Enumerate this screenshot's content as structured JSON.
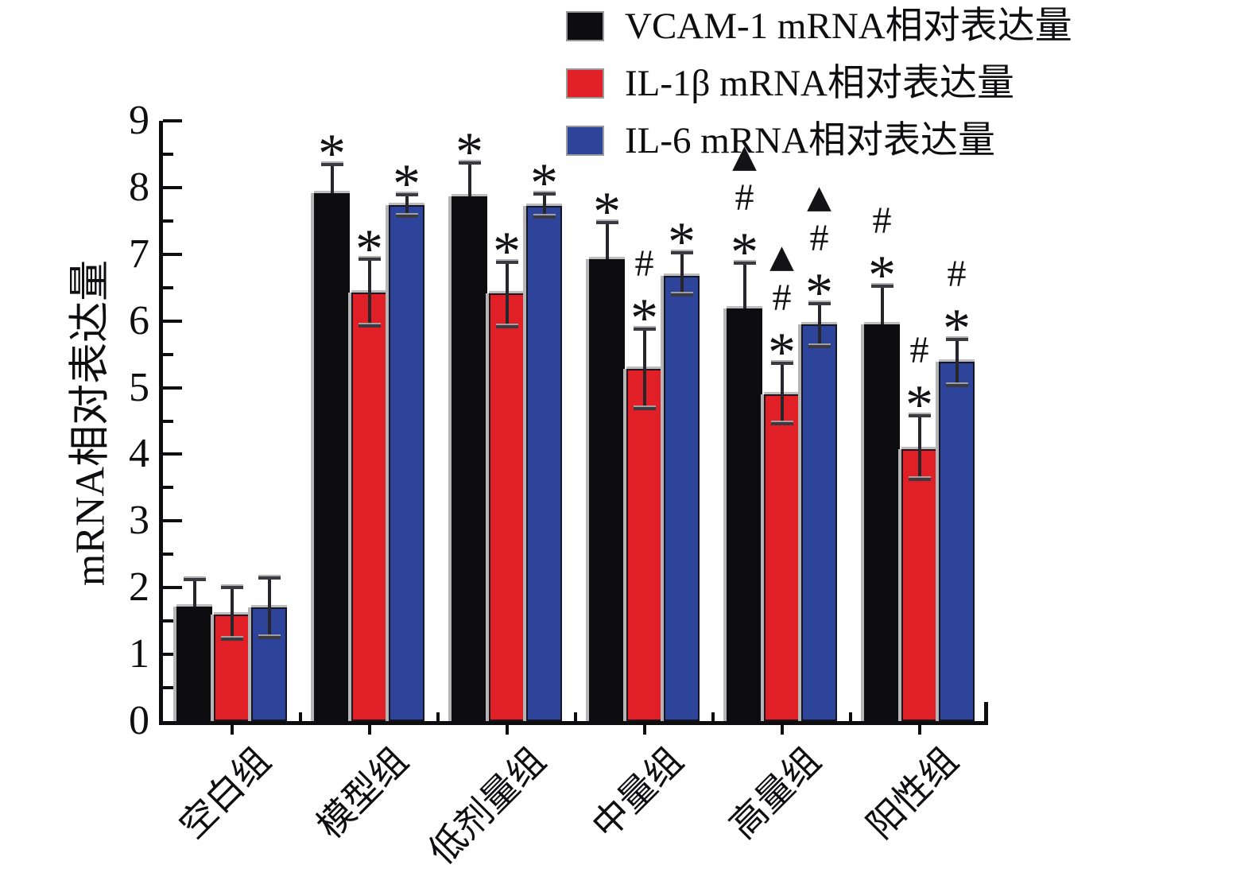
{
  "figure": {
    "background": "#ffffff",
    "axis_color": "#0e0e10"
  },
  "chart_data": {
    "type": "bar",
    "title": "",
    "xlabel": "",
    "ylabel": "mRNA相对表达量",
    "ylim": [
      0,
      9
    ],
    "ytick_step": 1,
    "yminor_step": 0.5,
    "grid": false,
    "legend_position": "top-right",
    "error_bars": true,
    "categories": [
      "空白组",
      "模型组",
      "低剂量组",
      "中量组",
      "高量组",
      "阳性组"
    ],
    "series": [
      {
        "name": "VCAM-1 mRNA相对表达量",
        "color": "#0d0d10",
        "values": [
          1.72,
          7.92,
          7.87,
          6.93,
          6.19,
          5.95
        ],
        "err_up": [
          0.4,
          0.43,
          0.5,
          0.55,
          0.68,
          0.57
        ],
        "err_down": [
          null,
          null,
          null,
          null,
          null,
          null
        ],
        "marks": [
          [],
          [
            "*"
          ],
          [
            "*"
          ],
          [
            "*"
          ],
          [
            "▲",
            "#",
            "*"
          ],
          [
            "#",
            "*"
          ]
        ]
      },
      {
        "name": "IL-1β mRNA相对表达量",
        "color": "#e01f26",
        "values": [
          1.6,
          6.42,
          6.41,
          5.28,
          4.9,
          4.08
        ],
        "err_up": [
          0.4,
          0.5,
          0.47,
          0.6,
          0.47,
          0.5
        ],
        "err_down": [
          0.37,
          0.5,
          0.5,
          0.59,
          0.44,
          0.46
        ],
        "marks": [
          [],
          [
            "*"
          ],
          [
            "*"
          ],
          [
            "#",
            "*"
          ],
          [
            "▲",
            "#",
            "*"
          ],
          [
            "#",
            "*"
          ]
        ]
      },
      {
        "name": "IL-6 mRNA相对表达量",
        "color": "#2e449b",
        "values": [
          1.7,
          7.74,
          7.73,
          6.68,
          5.95,
          5.39
        ],
        "err_up": [
          0.45,
          0.15,
          0.17,
          0.34,
          0.31,
          0.33
        ],
        "err_down": [
          0.45,
          0.17,
          0.17,
          0.29,
          0.33,
          0.36
        ],
        "marks": [
          [],
          [
            "*"
          ],
          [
            "*"
          ],
          [
            "*"
          ],
          [
            "▲",
            "#",
            "*"
          ],
          [
            "#",
            "*"
          ]
        ]
      }
    ]
  }
}
